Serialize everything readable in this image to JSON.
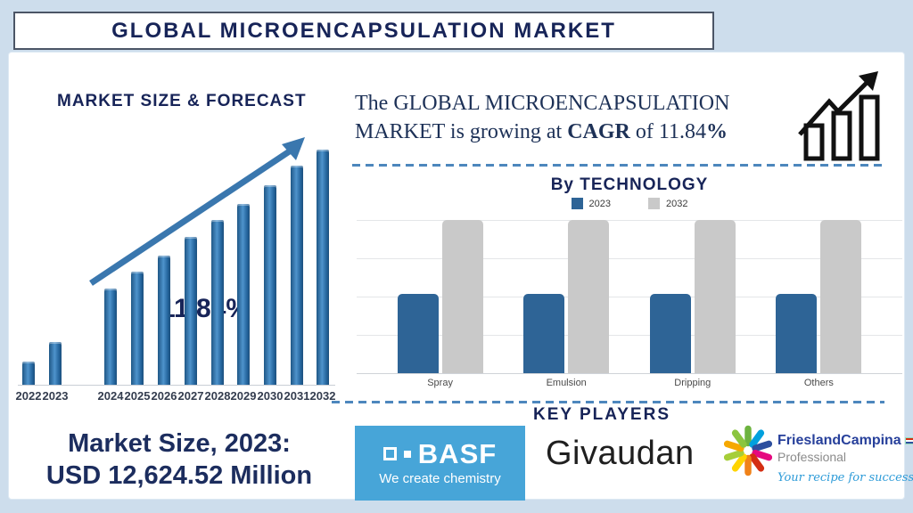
{
  "page": {
    "background": "#cdddec",
    "accent_navy": "#172458",
    "accent_steel_blue": "#2e6da4"
  },
  "header": {
    "title": "GLOBAL MICROENCAPSULATION MARKET"
  },
  "forecast_section": {
    "title": "MARKET SIZE & FORECAST",
    "cagr_annotation": "11.84%",
    "market_size_label": "Market Size, 2023:",
    "market_size_value": "USD 12,624.52 Million"
  },
  "cagr_banner": {
    "text_prefix": "The GLOBAL MICROENCAPSULATION MARKET is growing at ",
    "cagr_word": "CAGR",
    "text_middle": " of 11.84",
    "percent_sign": "%",
    "icon": "growth-bar-chart-icon"
  },
  "technology_section": {
    "title": "By TECHNOLOGY"
  },
  "key_players": {
    "title": "KEY PLAYERS",
    "logos": [
      {
        "name": "BASF",
        "tagline": "We create chemistry",
        "brand_color": "#47a5d8"
      },
      {
        "name": "Givaudan"
      },
      {
        "name": "FrieslandCampina",
        "line2": "Professional",
        "tagline": "Your recipe for success",
        "brand_color": "#27409b"
      }
    ]
  },
  "chart_data": [
    {
      "id": "market_size_forecast",
      "type": "bar",
      "title": "MARKET SIZE & FORECAST",
      "categories": [
        "2022",
        "2023",
        "2024",
        "2025",
        "2026",
        "2027",
        "2028",
        "2029",
        "2030",
        "2031",
        "2032"
      ],
      "values_relative_pct": [
        10,
        18,
        41,
        48,
        55,
        63,
        70,
        77,
        85,
        93,
        100
      ],
      "annotation": "11.84%",
      "cagr_pct": 11.84,
      "known_value": {
        "year": "2023",
        "value_usd_million": 12624.52
      },
      "bar_color": "#2e6da4",
      "y_axis_shown": false,
      "trend_arrow": true,
      "xlabel": "",
      "ylabel": ""
    },
    {
      "id": "by_technology",
      "type": "bar",
      "title": "By TECHNOLOGY",
      "categories": [
        "Spray",
        "Emulsion",
        "Dripping",
        "Others"
      ],
      "series": [
        {
          "name": "2023",
          "color": "#2e6496",
          "values_relative_pct": [
            52,
            52,
            52,
            52
          ]
        },
        {
          "name": "2032",
          "color": "#c9c9c9",
          "values_relative_pct": [
            100,
            100,
            100,
            100
          ]
        }
      ],
      "legend_position": "top",
      "grid": true,
      "y_axis_shown": false,
      "xlabel": "",
      "ylabel": ""
    }
  ]
}
